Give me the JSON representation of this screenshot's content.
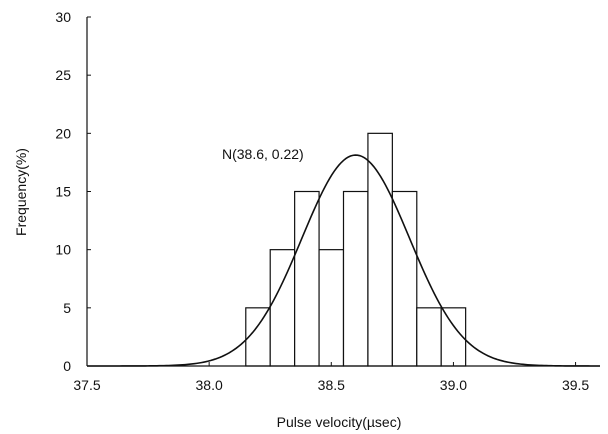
{
  "chart_data": {
    "type": "bar",
    "xlabel": "Pulse velocity(µsec)",
    "ylabel": "Frequency(%)",
    "xlim": [
      37.5,
      39.6
    ],
    "ylim": [
      0,
      30
    ],
    "x_ticks": [
      "37.5",
      "38.0",
      "38.5",
      "39.0",
      "39.5"
    ],
    "y_ticks": [
      "0",
      "5",
      "10",
      "15",
      "20",
      "25",
      "30"
    ],
    "bin_width": 0.1,
    "bins": [
      {
        "x": 38.2,
        "y": 5
      },
      {
        "x": 38.3,
        "y": 10
      },
      {
        "x": 38.4,
        "y": 15
      },
      {
        "x": 38.5,
        "y": 10
      },
      {
        "x": 38.6,
        "y": 15
      },
      {
        "x": 38.7,
        "y": 20
      },
      {
        "x": 38.8,
        "y": 15
      },
      {
        "x": 38.9,
        "y": 5
      },
      {
        "x": 39.0,
        "y": 5
      }
    ],
    "fit_curve": {
      "distribution": "normal",
      "mean": 38.6,
      "sd": 0.22,
      "label": "N(38.6, 0.22)"
    },
    "grid": false,
    "colors": {
      "bar_fill": "#ffffff",
      "bar_stroke": "#111111",
      "curve": "#111111",
      "axis": "#111111"
    }
  }
}
